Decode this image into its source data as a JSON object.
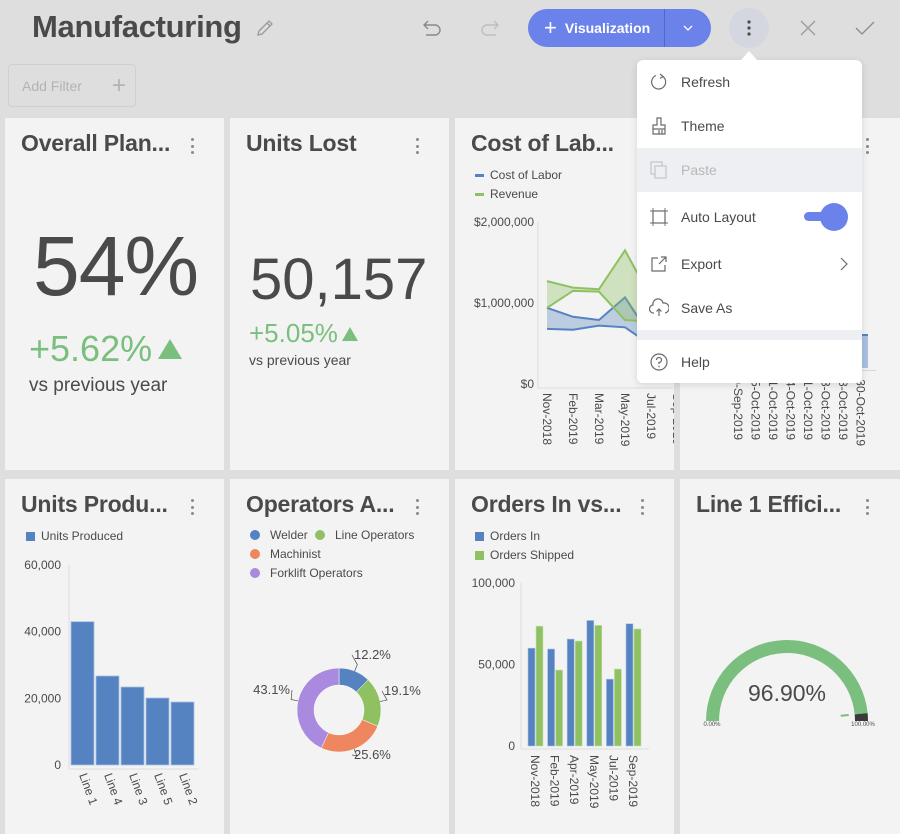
{
  "header": {
    "title": "Manufacturing",
    "edit_icon": "pencil-icon",
    "undo_icon": "undo-icon",
    "redo_icon": "redo-icon",
    "visualization_button": {
      "label": "Visualization",
      "icon": "plus-icon",
      "dropdown_icon": "chevron-down-icon",
      "color": "#6b82ea"
    },
    "more_icon": "vertical-ellipsis-icon",
    "close_icon": "close-icon",
    "confirm_icon": "check-icon"
  },
  "filter": {
    "add_filter_label": "Add Filter",
    "add_icon": "plus-icon"
  },
  "menu": {
    "items": [
      {
        "label": "Refresh",
        "icon": "refresh-icon",
        "enabled": true
      },
      {
        "label": "Theme",
        "icon": "paintbrush-icon",
        "enabled": true
      },
      {
        "label": "Paste",
        "icon": "paste-icon",
        "enabled": false
      },
      {
        "label": "Auto Layout",
        "icon": "auto-layout-icon",
        "enabled": true,
        "toggle": true,
        "toggle_on": true
      },
      {
        "label": "Export",
        "icon": "export-icon",
        "enabled": true,
        "submenu": true
      },
      {
        "label": "Save As",
        "icon": "cloud-upload-icon",
        "enabled": true
      },
      {
        "label": "Help",
        "icon": "help-icon",
        "enabled": true
      }
    ]
  },
  "colors": {
    "blue": "#5583c1",
    "green": "#8fc162",
    "orange": "#ee8660",
    "purple": "#a98ade",
    "kpi_green": "#7bbf7e",
    "accent": "#6b82ea"
  },
  "cards": {
    "overall_plant": {
      "title": "Overall Plan...",
      "value": "54%",
      "delta": "+5.62%",
      "delta_direction": "up",
      "comparison": "vs previous year"
    },
    "units_lost": {
      "title": "Units Lost",
      "value": "50,157",
      "delta": "+5.05%",
      "delta_direction": "up",
      "comparison": "vs previous year"
    },
    "cost_of_labor": {
      "title": "Cost of Lab..."
    },
    "hidden_card": {
      "x_labels_visible": [
        "0-Sep-2019",
        "5-Oct-2019",
        "1-Oct-2019",
        "4-Oct-2019",
        "1-Oct-2019",
        "3-Oct-2019",
        "8-Oct-2019",
        "30-Oct-2019"
      ]
    },
    "units_produced": {
      "title": "Units Produ..."
    },
    "operators": {
      "title": "Operators A..."
    },
    "orders": {
      "title": "Orders In vs..."
    },
    "line1_efficiency": {
      "title": "Line 1 Effici..."
    }
  },
  "chart_data": [
    {
      "id": "cost_of_labor",
      "type": "area",
      "subtype": "range-area",
      "title": "Cost of Lab...",
      "categories": [
        "Nov-2018",
        "Feb-2019",
        "Mar-2019",
        "May-2019",
        "Jul-2019",
        "Sep-2019"
      ],
      "series": [
        {
          "name": "Cost of Labor",
          "high": [
            940000,
            830000,
            790000,
            1070000,
            580000,
            850000
          ],
          "low": [
            680000,
            670000,
            720000,
            700000,
            480000,
            770000
          ]
        },
        {
          "name": "Revenue",
          "high": [
            1270000,
            1190000,
            1170000,
            1650000,
            1060000,
            1380000
          ],
          "low": [
            940000,
            1150000,
            1140000,
            790000,
            770000,
            940000
          ]
        }
      ],
      "y_ticks": [
        "$0",
        "$1,000,000",
        "$2,000,000"
      ],
      "ylim": [
        0,
        2000000
      ],
      "legend": "top-left"
    },
    {
      "id": "units_produced",
      "type": "bar",
      "title": "Units Produ...",
      "categories": [
        "Line 1",
        "Line 4",
        "Line 3",
        "Line 5",
        "Line 2"
      ],
      "series": [
        {
          "name": "Units Produced",
          "values": [
            43000,
            26700,
            23400,
            20100,
            18900
          ]
        }
      ],
      "y_ticks": [
        "0",
        "20,000",
        "40,000",
        "60,000"
      ],
      "ylim": [
        0,
        60000
      ],
      "legend": "top-left"
    },
    {
      "id": "operators",
      "type": "pie",
      "subtype": "doughnut",
      "title": "Operators A...",
      "slices": [
        {
          "name": "Welder",
          "value": 12.2,
          "label": "12.2%"
        },
        {
          "name": "Line Operators",
          "value": 19.1,
          "label": "19.1%"
        },
        {
          "name": "Machinist",
          "value": 25.6,
          "label": "25.6%"
        },
        {
          "name": "Forklift Operators",
          "value": 43.1,
          "label": "43.1%"
        }
      ],
      "legend": "top-left"
    },
    {
      "id": "orders",
      "type": "bar",
      "title": "Orders In vs...",
      "categories": [
        "Nov-2018",
        "Feb-2019",
        "Apr-2019",
        "May-2019",
        "Jul-2019",
        "Sep-2019"
      ],
      "series": [
        {
          "name": "Orders In",
          "values": [
            60000,
            59500,
            65600,
            77000,
            41000,
            75000
          ]
        },
        {
          "name": "Orders Shipped",
          "values": [
            73500,
            46600,
            64400,
            74000,
            47200,
            71800
          ]
        }
      ],
      "y_ticks": [
        "0",
        "50,000",
        "100,000"
      ],
      "ylim": [
        0,
        100000
      ],
      "legend": "top-left"
    },
    {
      "id": "line1_efficiency",
      "type": "gauge",
      "title": "Line 1 Effici...",
      "value": 96.9,
      "value_label": "96.90%",
      "min_label": "0.00%",
      "max_label": "100.00%",
      "range": [
        0,
        100
      ]
    }
  ]
}
